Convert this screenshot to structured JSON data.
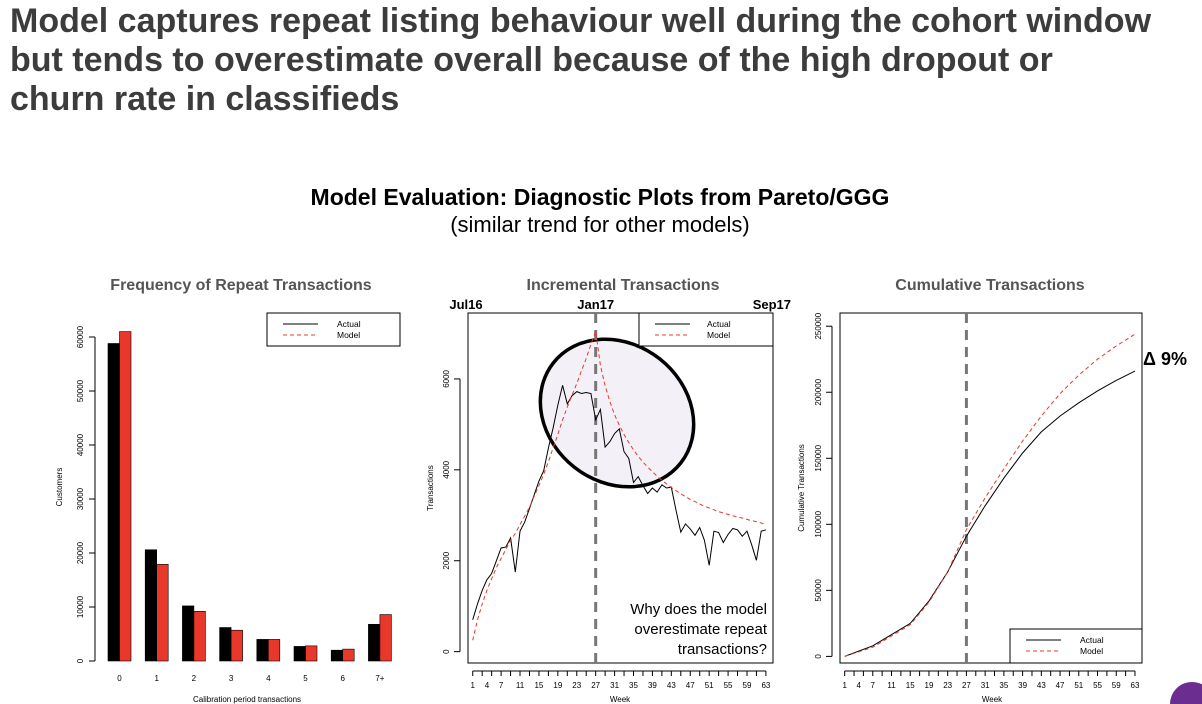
{
  "headline": [
    "Model captures repeat listing behaviour well during the cohort window",
    "but tends to overestimate overall because of  the high dropout or",
    "churn rate in classifieds"
  ],
  "subtitle": "Model Evaluation: Diagnostic Plots from Pareto/GGG",
  "subtitle2": "(similar trend for other models)",
  "colors": {
    "actual_bar": "#000000",
    "model_bar": "#e8382b",
    "model_line": "#e8382b",
    "ellipse_fill": "#f3f0f7",
    "divider": "#777777"
  },
  "chart_data": [
    {
      "type": "bar",
      "title": "Frequency of Repeat Transactions",
      "xlabel": "Calibration period transactions",
      "ylabel": "Customers",
      "ylim": [
        0,
        62500
      ],
      "yticks": [
        0,
        10000,
        20000,
        30000,
        40000,
        50000,
        60000
      ],
      "categories": [
        "0",
        "1",
        "2",
        "3",
        "4",
        "5",
        "6",
        "7+"
      ],
      "series": [
        {
          "name": "Actual",
          "values": [
            58800,
            20600,
            10200,
            6200,
            4000,
            2700,
            2000,
            6800
          ]
        },
        {
          "name": "Model",
          "values": [
            61000,
            17900,
            9200,
            5700,
            4000,
            2800,
            2200,
            8600
          ]
        }
      ],
      "legend_position": "top-right"
    },
    {
      "type": "line",
      "title": "Incremental Transactions",
      "xlabel": "Week",
      "ylabel": "Transactions",
      "ylim": [
        -250,
        7450
      ],
      "yticks": [
        0,
        2000,
        4000,
        6000
      ],
      "xlim": [
        0,
        64.5
      ],
      "xtick_labels": [
        1,
        4,
        7,
        11,
        15,
        19,
        23,
        27,
        31,
        35,
        39,
        43,
        47,
        51,
        55,
        59,
        63
      ],
      "calibration_end_week": 27,
      "date_markers": [
        {
          "week": 0,
          "label": "Jul16"
        },
        {
          "week": 27,
          "label": "Jan17"
        },
        {
          "week": 63,
          "label": "Sep17"
        }
      ],
      "annotation": [
        "Why does the model",
        "overestimate repeat",
        "transactions?"
      ],
      "series": [
        {
          "name": "Actual",
          "x": [
            1,
            2,
            3,
            4,
            5,
            6,
            7,
            8,
            9,
            10,
            11,
            12,
            13,
            14,
            15,
            16,
            17,
            18,
            19,
            20,
            21,
            22,
            23,
            24,
            25,
            26,
            27,
            28,
            29,
            30,
            31,
            32,
            33,
            34,
            35,
            36,
            37,
            38,
            39,
            40,
            41,
            42,
            43,
            44,
            45,
            46,
            47,
            48,
            49,
            50,
            51,
            52,
            53,
            54,
            55,
            56,
            57,
            58,
            59,
            60,
            61,
            62,
            63
          ],
          "y": [
            700,
            1050,
            1350,
            1580,
            1720,
            2000,
            2280,
            2300,
            2500,
            1750,
            2650,
            2850,
            3150,
            3450,
            3750,
            3980,
            4480,
            4920,
            5420,
            5860,
            5450,
            5630,
            5720,
            5680,
            5700,
            5680,
            5100,
            5330,
            4500,
            4620,
            4800,
            4900,
            4400,
            4250,
            3720,
            3850,
            3650,
            3480,
            3600,
            3510,
            3670,
            3600,
            3620,
            3100,
            2630,
            2810,
            2700,
            2560,
            2730,
            2450,
            1900,
            2650,
            2620,
            2400,
            2580,
            2710,
            2680,
            2540,
            2650,
            2350,
            2010,
            2650,
            2680
          ]
        },
        {
          "name": "Model",
          "x": [
            1,
            2,
            3,
            4,
            5,
            6,
            7,
            8,
            9,
            10,
            11,
            12,
            13,
            14,
            15,
            16,
            17,
            18,
            19,
            20,
            21,
            22,
            23,
            24,
            25,
            26,
            27,
            28,
            29,
            30,
            31,
            32,
            33,
            34,
            35,
            36,
            37,
            38,
            39,
            40,
            41,
            42,
            43,
            44,
            45,
            46,
            47,
            48,
            49,
            50,
            51,
            52,
            53,
            54,
            55,
            56,
            57,
            58,
            59,
            60,
            61,
            62,
            63
          ],
          "y": [
            250,
            700,
            1050,
            1350,
            1600,
            1850,
            2050,
            2250,
            2450,
            2600,
            2800,
            2980,
            3180,
            3420,
            3650,
            3900,
            4180,
            4480,
            4780,
            5100,
            5380,
            5640,
            5900,
            6180,
            6450,
            6760,
            7050,
            6300,
            5850,
            5500,
            5210,
            4980,
            4780,
            4600,
            4440,
            4300,
            4170,
            4060,
            3960,
            3860,
            3770,
            3690,
            3610,
            3540,
            3470,
            3410,
            3350,
            3300,
            3250,
            3200,
            3160,
            3120,
            3080,
            3050,
            3020,
            2990,
            2960,
            2940,
            2910,
            2880,
            2860,
            2830,
            2800
          ]
        }
      ],
      "legend_position": "top-right"
    },
    {
      "type": "line",
      "title": "Cumulative Transactions",
      "xlabel": "Week",
      "ylabel": "Cumulative Transactions",
      "ylim": [
        -5000,
        260000
      ],
      "yticks": [
        0,
        50000,
        100000,
        150000,
        200000,
        250000
      ],
      "xlim": [
        0,
        64.5
      ],
      "xtick_labels": [
        1,
        4,
        7,
        11,
        15,
        19,
        23,
        27,
        31,
        35,
        39,
        43,
        47,
        51,
        55,
        59,
        63
      ],
      "calibration_end_week": 27,
      "annotation": "Δ 9%",
      "series": [
        {
          "name": "Actual",
          "x": [
            1,
            7,
            15,
            19,
            23,
            27,
            31,
            35,
            39,
            43,
            47,
            51,
            55,
            59,
            63
          ],
          "y": [
            0,
            8000,
            25000,
            42000,
            64000,
            91000,
            114000,
            135000,
            154000,
            170000,
            182000,
            192000,
            201000,
            209000,
            216000
          ]
        },
        {
          "name": "Model",
          "x": [
            1,
            7,
            15,
            19,
            23,
            27,
            31,
            35,
            39,
            43,
            47,
            51,
            55,
            59,
            63
          ],
          "y": [
            0,
            7000,
            24000,
            41000,
            64000,
            96000,
            120000,
            142000,
            163000,
            182000,
            199000,
            213000,
            225000,
            235000,
            244000
          ]
        }
      ],
      "legend_position": "bottom-right"
    }
  ]
}
